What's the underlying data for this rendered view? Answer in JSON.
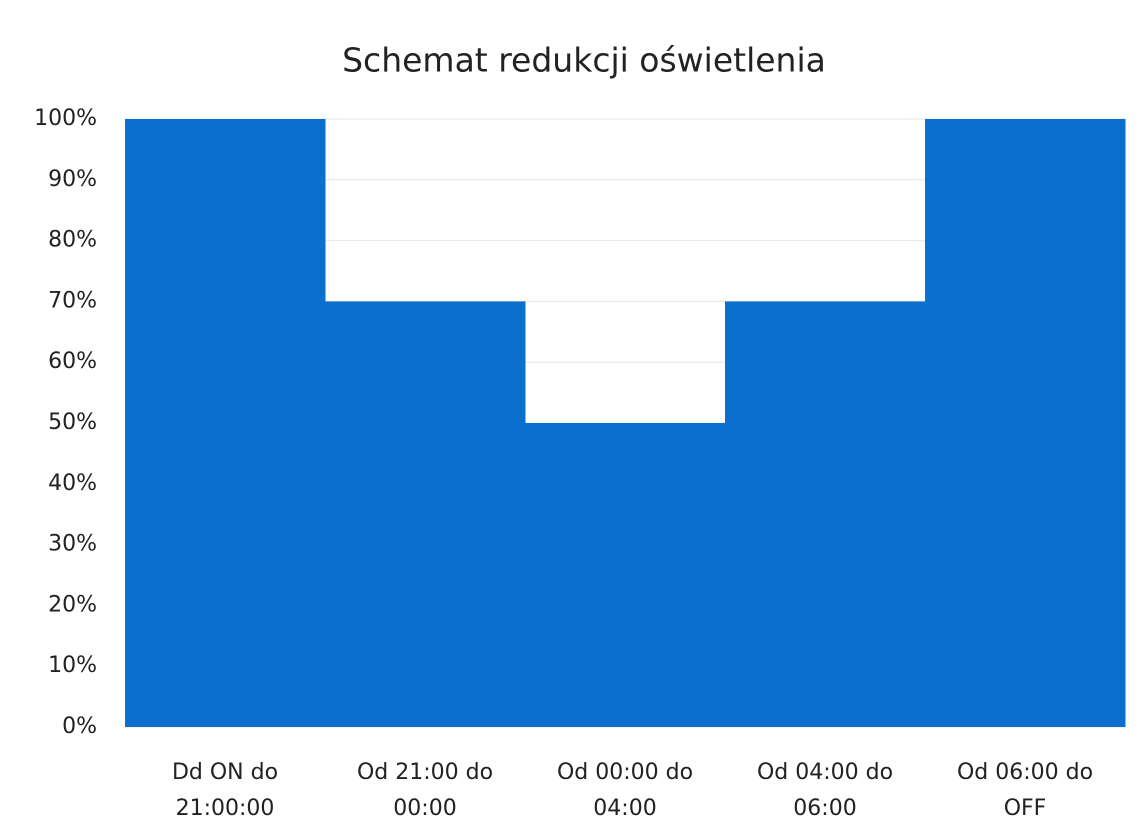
{
  "chart_data": {
    "type": "bar",
    "title": "Schemat redukcji oświetlenia",
    "categories": [
      "Dd ON do 21:00:00",
      "Od 21:00 do 00:00",
      "Od 00:00 do 04:00",
      "Od 04:00 do 06:00",
      "Od 06:00 do OFF"
    ],
    "values": [
      100,
      70,
      50,
      70,
      100
    ],
    "color": "#0b6fce",
    "ylim": [
      0,
      100
    ],
    "yticks": [
      {
        "value": 0,
        "label": "0%"
      },
      {
        "value": 10,
        "label": "10%"
      },
      {
        "value": 20,
        "label": "20%"
      },
      {
        "value": 30,
        "label": "30%"
      },
      {
        "value": 40,
        "label": "40%"
      },
      {
        "value": 50,
        "label": "50%"
      },
      {
        "value": 60,
        "label": "60%"
      },
      {
        "value": 70,
        "label": "70%"
      },
      {
        "value": 80,
        "label": "80%"
      },
      {
        "value": 90,
        "label": "90%"
      },
      {
        "value": 100,
        "label": "100%"
      }
    ],
    "grid": true
  }
}
